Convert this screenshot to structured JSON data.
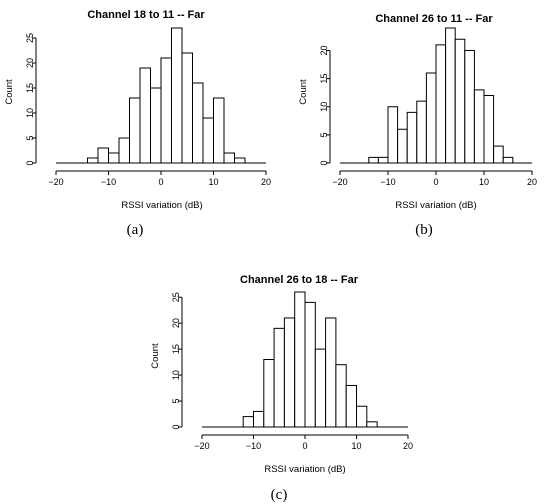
{
  "chart_data": [
    {
      "type": "bar",
      "title": "Channel 18 to 11 -- Far",
      "xlabel": "RSSI variation (dB)",
      "ylabel": "Count",
      "caption": "(a)",
      "xlim": [
        -20,
        20
      ],
      "ylim": [
        0,
        27
      ],
      "x_ticks": [
        -20,
        -10,
        0,
        10,
        20
      ],
      "y_ticks": [
        0,
        5,
        10,
        15,
        20,
        25
      ],
      "bin_width": 2,
      "bins_start": [
        -14,
        -12,
        -10,
        -8,
        -6,
        -4,
        -2,
        0,
        2,
        4,
        6,
        8,
        10,
        12,
        14
      ],
      "values": [
        1,
        3,
        2,
        5,
        13,
        19,
        15,
        21,
        27,
        22,
        16,
        9,
        13,
        2,
        1
      ]
    },
    {
      "type": "bar",
      "title": "Channel 26 to 11 -- Far",
      "xlabel": "RSSI variation (dB)",
      "ylabel": "Count",
      "caption": "(b)",
      "xlim": [
        -20,
        20
      ],
      "ylim": [
        0,
        24
      ],
      "x_ticks": [
        -20,
        -10,
        0,
        10,
        20
      ],
      "y_ticks": [
        0,
        5,
        10,
        15,
        20
      ],
      "bin_width": 2,
      "bins_start": [
        -14,
        -12,
        -10,
        -8,
        -6,
        -4,
        -2,
        0,
        2,
        4,
        6,
        8,
        10,
        12,
        14
      ],
      "values": [
        1,
        1,
        10,
        6,
        9,
        11,
        16,
        21,
        24,
        22,
        20,
        13,
        12,
        3,
        1
      ]
    },
    {
      "type": "bar",
      "title": "Channel 26 to 18 -- Far",
      "xlabel": "RSSI variation (dB)",
      "ylabel": "Count",
      "caption": "(c)",
      "xlim": [
        -20,
        20
      ],
      "ylim": [
        0,
        26
      ],
      "x_ticks": [
        -20,
        -10,
        0,
        10,
        20
      ],
      "y_ticks": [
        0,
        5,
        10,
        15,
        20,
        25
      ],
      "bin_width": 2,
      "bins_start": [
        -12,
        -10,
        -8,
        -6,
        -4,
        -2,
        0,
        2,
        4,
        6,
        8,
        10,
        12
      ],
      "values": [
        2,
        3,
        13,
        19,
        21,
        26,
        24,
        15,
        21,
        12,
        8,
        4,
        1
      ]
    }
  ]
}
